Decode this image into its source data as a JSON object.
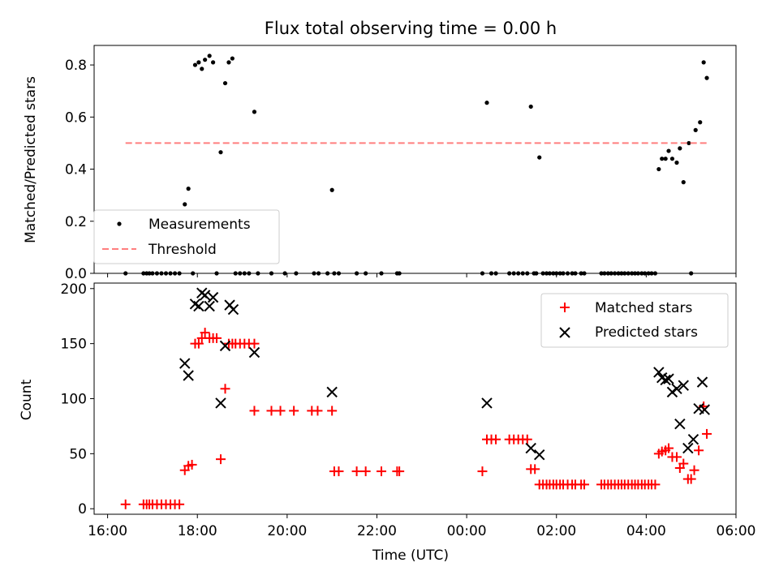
{
  "chart_data": [
    {
      "type": "scatter",
      "title": "Flux total observing time = 0.00 h",
      "xlabel": "",
      "ylabel": "Matched/Predicted stars",
      "xlim": [
        15.7,
        30.0
      ],
      "ylim": [
        0.0,
        0.875
      ],
      "yticks": [
        0.0,
        0.2,
        0.4,
        0.6,
        0.8
      ],
      "ytick_labels": [
        "0.0",
        "0.2",
        "0.4",
        "0.6",
        "0.8"
      ],
      "xticks": [
        16,
        18,
        20,
        22,
        24,
        26,
        28,
        30
      ],
      "legend_position": "lower-left",
      "series": [
        {
          "name": "Measurements",
          "marker": "dot",
          "color": "#000000",
          "points": [
            [
              16.4,
              0
            ],
            [
              16.8,
              0
            ],
            [
              16.87,
              0
            ],
            [
              16.93,
              0
            ],
            [
              17.0,
              0
            ],
            [
              17.1,
              0
            ],
            [
              17.2,
              0
            ],
            [
              17.3,
              0
            ],
            [
              17.4,
              0
            ],
            [
              17.5,
              0
            ],
            [
              17.6,
              0
            ],
            [
              17.72,
              0.265
            ],
            [
              17.8,
              0.325
            ],
            [
              17.9,
              0
            ],
            [
              17.95,
              0.8
            ],
            [
              18.03,
              0.81
            ],
            [
              18.1,
              0.785
            ],
            [
              18.17,
              0.82
            ],
            [
              18.27,
              0.835
            ],
            [
              18.35,
              0.81
            ],
            [
              18.43,
              0
            ],
            [
              18.52,
              0.465
            ],
            [
              18.62,
              0.73
            ],
            [
              18.7,
              0.81
            ],
            [
              18.78,
              0.825
            ],
            [
              18.85,
              0
            ],
            [
              18.95,
              0
            ],
            [
              19.05,
              0
            ],
            [
              19.15,
              0
            ],
            [
              19.27,
              0.62
            ],
            [
              19.35,
              0
            ],
            [
              19.65,
              0
            ],
            [
              19.95,
              0
            ],
            [
              20.2,
              0
            ],
            [
              20.6,
              0
            ],
            [
              20.7,
              0
            ],
            [
              20.9,
              0
            ],
            [
              21.0,
              0.32
            ],
            [
              21.05,
              0
            ],
            [
              21.15,
              0
            ],
            [
              21.55,
              0
            ],
            [
              21.75,
              0
            ],
            [
              22.1,
              0
            ],
            [
              22.45,
              0
            ],
            [
              22.5,
              0
            ],
            [
              24.35,
              0
            ],
            [
              24.45,
              0.655
            ],
            [
              24.55,
              0
            ],
            [
              24.65,
              0
            ],
            [
              24.95,
              0
            ],
            [
              25.05,
              0
            ],
            [
              25.15,
              0
            ],
            [
              25.25,
              0
            ],
            [
              25.35,
              0
            ],
            [
              25.43,
              0.64
            ],
            [
              25.5,
              0
            ],
            [
              25.55,
              0
            ],
            [
              25.62,
              0.445
            ],
            [
              25.7,
              0
            ],
            [
              25.78,
              0
            ],
            [
              25.85,
              0
            ],
            [
              25.93,
              0
            ],
            [
              26.0,
              0
            ],
            [
              26.08,
              0
            ],
            [
              26.15,
              0
            ],
            [
              26.25,
              0
            ],
            [
              26.35,
              0
            ],
            [
              26.42,
              0
            ],
            [
              26.55,
              0
            ],
            [
              26.62,
              0
            ],
            [
              27.0,
              0
            ],
            [
              27.07,
              0
            ],
            [
              27.15,
              0
            ],
            [
              27.22,
              0
            ],
            [
              27.3,
              0
            ],
            [
              27.38,
              0
            ],
            [
              27.45,
              0
            ],
            [
              27.52,
              0
            ],
            [
              27.6,
              0
            ],
            [
              27.68,
              0
            ],
            [
              27.75,
              0
            ],
            [
              27.82,
              0
            ],
            [
              27.9,
              0
            ],
            [
              27.97,
              0
            ],
            [
              28.05,
              0
            ],
            [
              28.12,
              0
            ],
            [
              28.2,
              0
            ],
            [
              28.28,
              0.4
            ],
            [
              28.35,
              0.44
            ],
            [
              28.43,
              0.44
            ],
            [
              28.5,
              0.47
            ],
            [
              28.58,
              0.44
            ],
            [
              28.68,
              0.425
            ],
            [
              28.75,
              0.48
            ],
            [
              28.83,
              0.35
            ],
            [
              28.95,
              0.5
            ],
            [
              29.0,
              0
            ],
            [
              29.1,
              0.55
            ],
            [
              29.2,
              0.58
            ],
            [
              29.28,
              0.81
            ],
            [
              29.35,
              0.75
            ]
          ]
        },
        {
          "name": "Threshold",
          "marker": "dashed-line",
          "color": "#ff7f7f",
          "x": [
            16.4,
            29.35
          ],
          "y": [
            0.5,
            0.5
          ]
        }
      ]
    },
    {
      "type": "scatter",
      "title": "",
      "xlabel": "Time (UTC)",
      "ylabel": "Count",
      "xlim": [
        15.7,
        30.0
      ],
      "ylim": [
        -5,
        205
      ],
      "yticks": [
        0,
        50,
        100,
        150,
        200
      ],
      "ytick_labels": [
        "0",
        "50",
        "100",
        "150",
        "200"
      ],
      "xticks": [
        16,
        18,
        20,
        22,
        24,
        26,
        28,
        30
      ],
      "xtick_labels": [
        "16:00",
        "18:00",
        "20:00",
        "22:00",
        "00:00",
        "02:00",
        "04:00",
        "06:00"
      ],
      "legend_position": "upper-right",
      "series": [
        {
          "name": "Matched stars",
          "marker": "plus",
          "color": "#ff0000",
          "points": [
            [
              16.4,
              4
            ],
            [
              16.8,
              4
            ],
            [
              16.87,
              4
            ],
            [
              16.93,
              4
            ],
            [
              17.0,
              4
            ],
            [
              17.1,
              4
            ],
            [
              17.2,
              4
            ],
            [
              17.3,
              4
            ],
            [
              17.4,
              4
            ],
            [
              17.5,
              4
            ],
            [
              17.6,
              4
            ],
            [
              17.72,
              35
            ],
            [
              17.8,
              39
            ],
            [
              17.88,
              40
            ],
            [
              17.95,
              150
            ],
            [
              18.03,
              150
            ],
            [
              18.1,
              155
            ],
            [
              18.17,
              160
            ],
            [
              18.27,
              155
            ],
            [
              18.35,
              155
            ],
            [
              18.43,
              155
            ],
            [
              18.52,
              45
            ],
            [
              18.62,
              109
            ],
            [
              18.7,
              150
            ],
            [
              18.78,
              150
            ],
            [
              18.85,
              150
            ],
            [
              18.95,
              150
            ],
            [
              19.05,
              150
            ],
            [
              19.15,
              150
            ],
            [
              19.27,
              150
            ],
            [
              19.27,
              89
            ],
            [
              19.65,
              89
            ],
            [
              19.85,
              89
            ],
            [
              20.15,
              89
            ],
            [
              20.55,
              89
            ],
            [
              20.68,
              89
            ],
            [
              21.0,
              89
            ],
            [
              21.05,
              34
            ],
            [
              21.15,
              34
            ],
            [
              21.55,
              34
            ],
            [
              21.75,
              34
            ],
            [
              22.1,
              34
            ],
            [
              22.45,
              34
            ],
            [
              22.5,
              34
            ],
            [
              24.35,
              34
            ],
            [
              24.45,
              63
            ],
            [
              24.55,
              63
            ],
            [
              24.65,
              63
            ],
            [
              24.95,
              63
            ],
            [
              25.05,
              63
            ],
            [
              25.15,
              63
            ],
            [
              25.25,
              63
            ],
            [
              25.35,
              63
            ],
            [
              25.43,
              36
            ],
            [
              25.52,
              36
            ],
            [
              25.62,
              22
            ],
            [
              25.7,
              22
            ],
            [
              25.78,
              22
            ],
            [
              25.85,
              22
            ],
            [
              25.93,
              22
            ],
            [
              26.0,
              22
            ],
            [
              26.08,
              22
            ],
            [
              26.15,
              22
            ],
            [
              26.25,
              22
            ],
            [
              26.35,
              22
            ],
            [
              26.42,
              22
            ],
            [
              26.55,
              22
            ],
            [
              26.62,
              22
            ],
            [
              27.0,
              22
            ],
            [
              27.07,
              22
            ],
            [
              27.15,
              22
            ],
            [
              27.22,
              22
            ],
            [
              27.3,
              22
            ],
            [
              27.38,
              22
            ],
            [
              27.45,
              22
            ],
            [
              27.52,
              22
            ],
            [
              27.6,
              22
            ],
            [
              27.68,
              22
            ],
            [
              27.75,
              22
            ],
            [
              27.82,
              22
            ],
            [
              27.9,
              22
            ],
            [
              27.97,
              22
            ],
            [
              28.05,
              22
            ],
            [
              28.12,
              22
            ],
            [
              28.2,
              22
            ],
            [
              28.28,
              50
            ],
            [
              28.35,
              52
            ],
            [
              28.43,
              53
            ],
            [
              28.5,
              55
            ],
            [
              28.58,
              47
            ],
            [
              28.68,
              47
            ],
            [
              28.75,
              37
            ],
            [
              28.83,
              41
            ],
            [
              28.93,
              27
            ],
            [
              29.0,
              27
            ],
            [
              29.07,
              35
            ],
            [
              29.17,
              53
            ],
            [
              29.28,
              93
            ],
            [
              29.35,
              68
            ]
          ]
        },
        {
          "name": "Predicted stars",
          "marker": "x",
          "color": "#000000",
          "points": [
            [
              17.72,
              132
            ],
            [
              17.8,
              121
            ],
            [
              17.95,
              186
            ],
            [
              18.03,
              184
            ],
            [
              18.1,
              196
            ],
            [
              18.17,
              194
            ],
            [
              18.27,
              184
            ],
            [
              18.35,
              192
            ],
            [
              18.52,
              96
            ],
            [
              18.62,
              148
            ],
            [
              18.72,
              185
            ],
            [
              18.8,
              181
            ],
            [
              19.27,
              142
            ],
            [
              21.0,
              106
            ],
            [
              24.45,
              96
            ],
            [
              25.43,
              55
            ],
            [
              25.62,
              49
            ],
            [
              28.28,
              124
            ],
            [
              28.35,
              119
            ],
            [
              28.43,
              117
            ],
            [
              28.5,
              118
            ],
            [
              28.58,
              106
            ],
            [
              28.68,
              109
            ],
            [
              28.75,
              77
            ],
            [
              28.83,
              112
            ],
            [
              28.93,
              55
            ],
            [
              29.05,
              63
            ],
            [
              29.17,
              91
            ],
            [
              29.25,
              115
            ],
            [
              29.3,
              90
            ]
          ]
        }
      ]
    }
  ]
}
